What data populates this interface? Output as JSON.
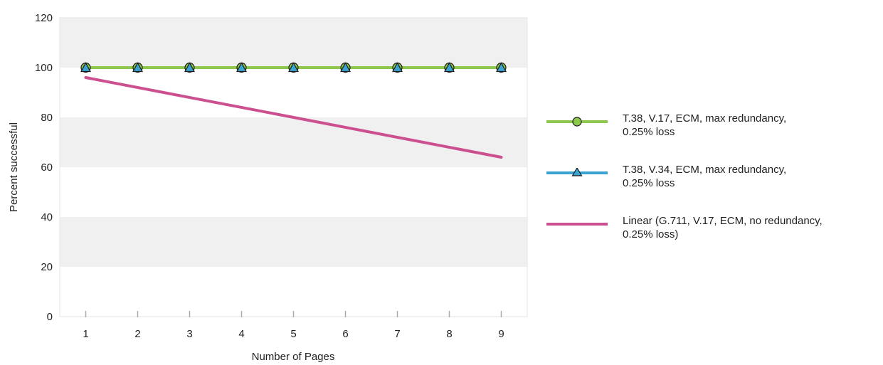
{
  "chart_data": {
    "type": "line",
    "x": [
      1,
      2,
      3,
      4,
      5,
      6,
      7,
      8,
      9
    ],
    "xlabel": "Number of Pages",
    "ylabel": "Percent successful",
    "ylim": [
      0,
      120
    ],
    "yticks": [
      0,
      20,
      40,
      60,
      80,
      100,
      120
    ],
    "grid": "alternating horizontal bands",
    "legend_position": "right",
    "series": [
      {
        "name": "T.38, V.17, ECM, max redundancy, 0.25% loss",
        "legend_lines": [
          "T.38, V.17, ECM, max redundancy,",
          "0.25% loss"
        ],
        "values": [
          100,
          100,
          100,
          100,
          100,
          100,
          100,
          100,
          100
        ],
        "color": "#8CC84B",
        "marker": "circle"
      },
      {
        "name": "T.38, V.34, ECM, max redundancy, 0.25% loss",
        "legend_lines": [
          "T.38, V.34, ECM, max redundancy,",
          "0.25% loss"
        ],
        "values": [
          100,
          100,
          100,
          100,
          100,
          100,
          100,
          100,
          100
        ],
        "color": "#3BA3D0",
        "marker": "triangle"
      },
      {
        "name": "Linear (G.711, V.17, ECM, no redundancy, 0.25% loss)",
        "legend_lines": [
          "Linear (G.711, V.17, ECM, no redundancy,",
          "0.25% loss)"
        ],
        "values": [
          96,
          92,
          88,
          84,
          80,
          76,
          72,
          68,
          64
        ],
        "color": "#CC4F8F",
        "marker": "none"
      }
    ]
  }
}
